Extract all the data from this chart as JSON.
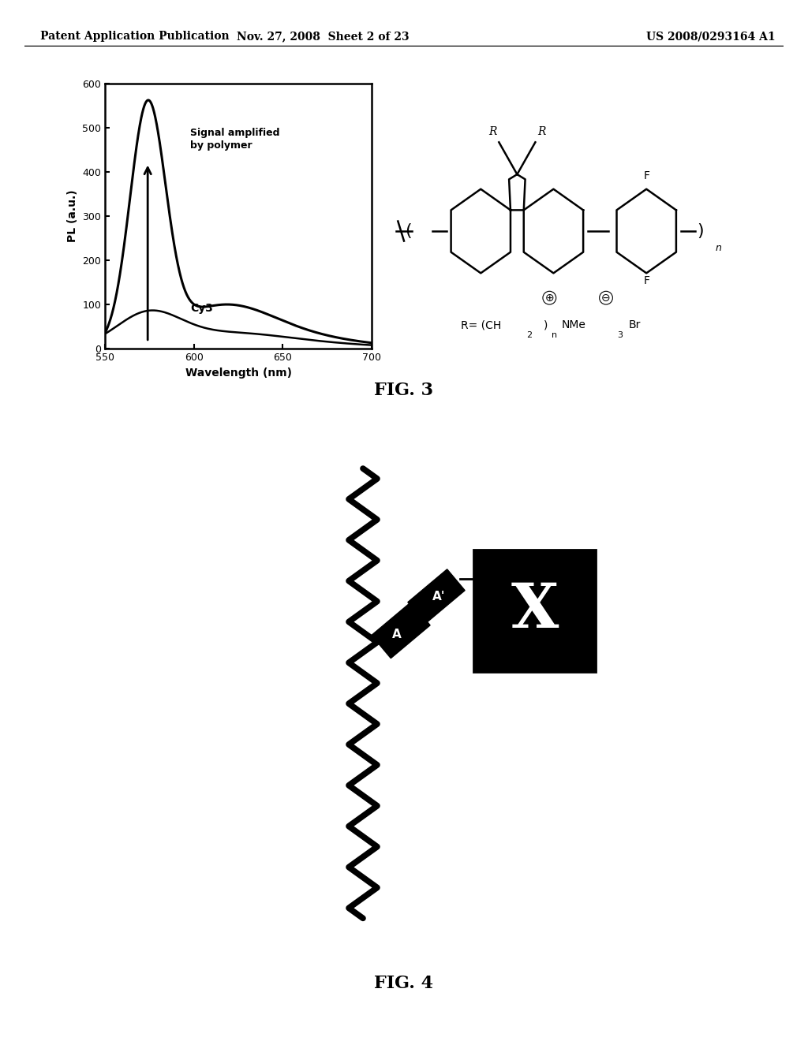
{
  "header_left": "Patent Application Publication",
  "header_mid": "Nov. 27, 2008  Sheet 2 of 23",
  "header_right": "US 2008/0293164 A1",
  "fig3_label": "FIG. 3",
  "fig4_label": "FIG. 4",
  "plot_xlabel": "Wavelength (nm)",
  "plot_ylabel": "PL (a.u.)",
  "plot_xlim": [
    550,
    700
  ],
  "plot_ylim": [
    0,
    600
  ],
  "plot_xticks": [
    550,
    600,
    650,
    700
  ],
  "plot_yticks": [
    0,
    100,
    200,
    300,
    400,
    500,
    600
  ],
  "annotation_signal": "Signal amplified\nby polymer",
  "annotation_cy3": "Cy3",
  "background_color": "#ffffff",
  "curve_color": "#000000"
}
